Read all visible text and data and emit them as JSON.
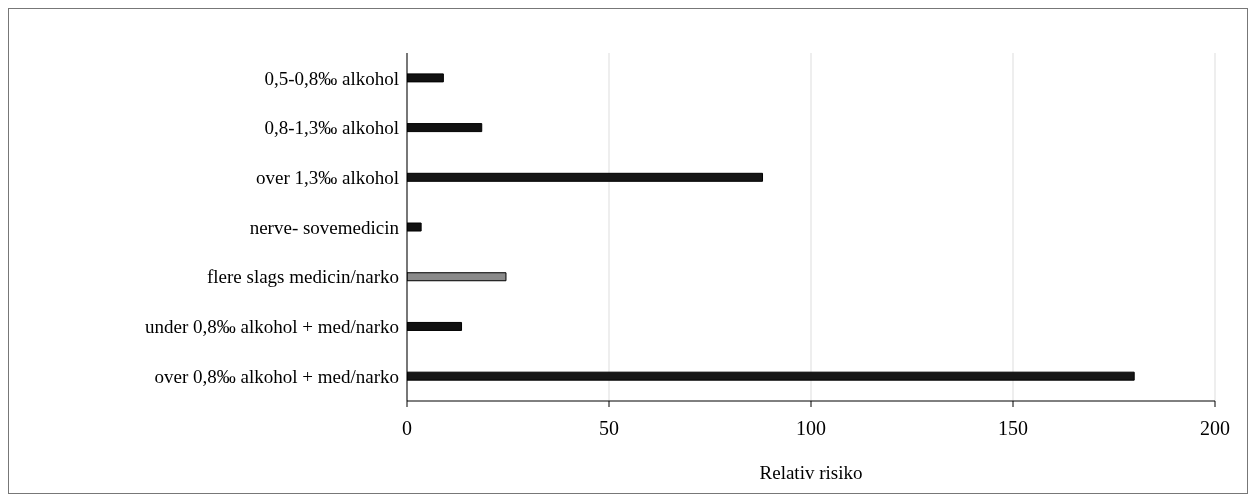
{
  "chart_data": {
    "type": "bar",
    "orientation": "horizontal",
    "xlabel": "Relativ risiko",
    "categories": [
      "0,5-0,8‰ alkohol",
      "0,8-1,3‰ alkohol",
      "over 1,3‰ alkohol",
      "nerve- sovemedicin",
      "flere slags medicin/narko",
      "under 0,8‰ alkohol + med/narko",
      "over 0,8‰ alkohol + med/narko"
    ],
    "values": [
      9,
      18.5,
      88,
      3.5,
      24.5,
      13.5,
      180
    ],
    "colors": [
      "#111111",
      "#111111",
      "#161616",
      "#111111",
      "#8a8a8a",
      "#111111",
      "#161616"
    ],
    "xlim": [
      0,
      200
    ],
    "xticks": [
      0,
      50,
      100,
      150,
      200
    ],
    "grid": "x",
    "legend": false
  }
}
